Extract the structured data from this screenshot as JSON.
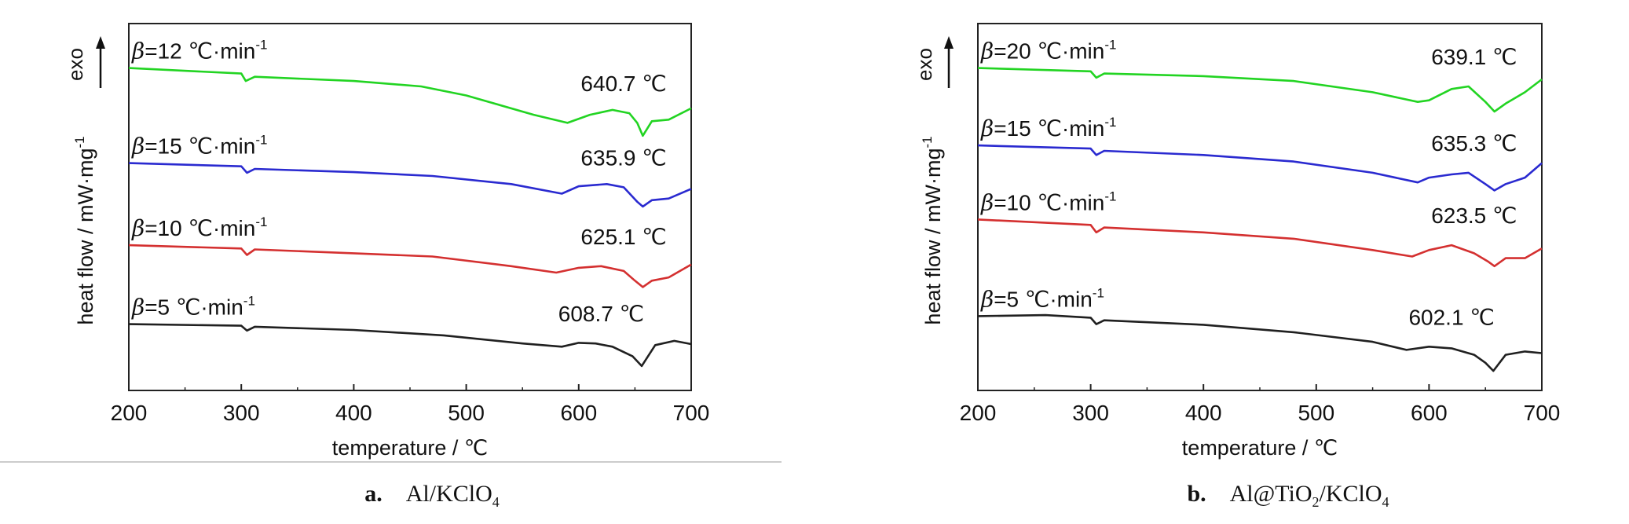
{
  "chart_data": [
    {
      "type": "line",
      "panel_label": "a.",
      "material": "Al/KClO",
      "material_sub": "4",
      "xlabel": "temperature / ℃",
      "ylabel": "heat flow / mW·mg",
      "ylabel_sup": "-1",
      "exo_label": "exo",
      "xlim": [
        200,
        700
      ],
      "xticks": [
        "200",
        "300",
        "400",
        "500",
        "600",
        "700"
      ],
      "y_ticks_shown": false,
      "colors": {
        "green": "#22d422",
        "blue": "#2a2ad0",
        "red": "#d43030",
        "black": "#202020"
      },
      "series": [
        {
          "color": "green",
          "rate_label": "=12 ℃·min",
          "rate_label_sup": "-1",
          "peak_label": "640.7 ℃",
          "peak_temp": 640.7,
          "points": [
            [
              200,
              0.935
            ],
            [
              300,
              0.918
            ],
            [
              304,
              0.895
            ],
            [
              312,
              0.908
            ],
            [
              400,
              0.895
            ],
            [
              460,
              0.878
            ],
            [
              500,
              0.85
            ],
            [
              560,
              0.79
            ],
            [
              590,
              0.765
            ],
            [
              610,
              0.79
            ],
            [
              630,
              0.805
            ],
            [
              645,
              0.795
            ],
            [
              652,
              0.765
            ],
            [
              657,
              0.725
            ],
            [
              665,
              0.77
            ],
            [
              680,
              0.775
            ],
            [
              700,
              0.81
            ]
          ]
        },
        {
          "color": "blue",
          "rate_label": "=15 ℃·min",
          "rate_label_sup": "-1",
          "peak_label": "635.9 ℃",
          "peak_temp": 635.9,
          "points": [
            [
              200,
              0.64
            ],
            [
              300,
              0.63
            ],
            [
              305,
              0.61
            ],
            [
              312,
              0.622
            ],
            [
              400,
              0.612
            ],
            [
              470,
              0.6
            ],
            [
              540,
              0.575
            ],
            [
              585,
              0.545
            ],
            [
              600,
              0.568
            ],
            [
              625,
              0.575
            ],
            [
              640,
              0.565
            ],
            [
              652,
              0.52
            ],
            [
              657,
              0.505
            ],
            [
              665,
              0.525
            ],
            [
              680,
              0.53
            ],
            [
              700,
              0.56
            ]
          ]
        },
        {
          "color": "red",
          "rate_label": "=10 ℃·min",
          "rate_label_sup": "-1",
          "peak_label": "625.1 ℃",
          "peak_temp": 625.1,
          "points": [
            [
              200,
              0.385
            ],
            [
              300,
              0.375
            ],
            [
              305,
              0.355
            ],
            [
              312,
              0.372
            ],
            [
              400,
              0.36
            ],
            [
              470,
              0.35
            ],
            [
              540,
              0.32
            ],
            [
              580,
              0.3
            ],
            [
              600,
              0.315
            ],
            [
              620,
              0.32
            ],
            [
              640,
              0.305
            ],
            [
              650,
              0.275
            ],
            [
              657,
              0.255
            ],
            [
              665,
              0.275
            ],
            [
              680,
              0.285
            ],
            [
              700,
              0.325
            ]
          ]
        },
        {
          "color": "black",
          "rate_label": "=5 ℃·min",
          "rate_label_sup": "-1",
          "peak_label": "608.7 ℃",
          "peak_temp": 608.7,
          "points": [
            [
              200,
              0.14
            ],
            [
              300,
              0.135
            ],
            [
              305,
              0.12
            ],
            [
              312,
              0.132
            ],
            [
              400,
              0.122
            ],
            [
              480,
              0.105
            ],
            [
              550,
              0.08
            ],
            [
              585,
              0.07
            ],
            [
              600,
              0.082
            ],
            [
              615,
              0.08
            ],
            [
              630,
              0.07
            ],
            [
              648,
              0.04
            ],
            [
              656,
              0.01
            ],
            [
              668,
              0.075
            ],
            [
              685,
              0.088
            ],
            [
              700,
              0.078
            ]
          ]
        }
      ]
    },
    {
      "type": "line",
      "panel_label": "b.",
      "material": "Al@TiO",
      "material_sub": "2",
      "material_tail": "/KClO",
      "material_tail_sub": "4",
      "xlabel": "temperature / ℃",
      "ylabel": "heat flow / mW·mg",
      "ylabel_sup": "-1",
      "exo_label": "exo",
      "xlim": [
        200,
        700
      ],
      "xticks": [
        "200",
        "300",
        "400",
        "500",
        "600",
        "700"
      ],
      "y_ticks_shown": false,
      "colors": {
        "green": "#22d422",
        "blue": "#2a2ad0",
        "red": "#d43030",
        "black": "#202020"
      },
      "series": [
        {
          "color": "green",
          "rate_label": "=20 ℃·min",
          "rate_label_sup": "-1",
          "peak_label": "639.1 ℃",
          "peak_temp": 639.1,
          "points": [
            [
              200,
              0.935
            ],
            [
              300,
              0.925
            ],
            [
              305,
              0.905
            ],
            [
              312,
              0.918
            ],
            [
              400,
              0.91
            ],
            [
              480,
              0.895
            ],
            [
              550,
              0.86
            ],
            [
              590,
              0.83
            ],
            [
              600,
              0.835
            ],
            [
              620,
              0.87
            ],
            [
              635,
              0.878
            ],
            [
              650,
              0.83
            ],
            [
              658,
              0.8
            ],
            [
              668,
              0.825
            ],
            [
              685,
              0.86
            ],
            [
              700,
              0.9
            ]
          ]
        },
        {
          "color": "blue",
          "rate_label": "=15 ℃·min",
          "rate_label_sup": "-1",
          "peak_label": "635.3 ℃",
          "peak_temp": 635.3,
          "points": [
            [
              200,
              0.695
            ],
            [
              300,
              0.685
            ],
            [
              305,
              0.665
            ],
            [
              312,
              0.678
            ],
            [
              400,
              0.665
            ],
            [
              480,
              0.645
            ],
            [
              550,
              0.61
            ],
            [
              590,
              0.58
            ],
            [
              600,
              0.595
            ],
            [
              620,
              0.605
            ],
            [
              635,
              0.61
            ],
            [
              650,
              0.575
            ],
            [
              658,
              0.555
            ],
            [
              668,
              0.575
            ],
            [
              685,
              0.595
            ],
            [
              700,
              0.64
            ]
          ]
        },
        {
          "color": "red",
          "rate_label": "=10 ℃·min",
          "rate_label_sup": "-1",
          "peak_label": "623.5 ℃",
          "peak_temp": 623.5,
          "points": [
            [
              200,
              0.465
            ],
            [
              300,
              0.448
            ],
            [
              305,
              0.425
            ],
            [
              312,
              0.44
            ],
            [
              400,
              0.425
            ],
            [
              480,
              0.405
            ],
            [
              550,
              0.37
            ],
            [
              585,
              0.35
            ],
            [
              600,
              0.37
            ],
            [
              620,
              0.385
            ],
            [
              640,
              0.36
            ],
            [
              652,
              0.335
            ],
            [
              658,
              0.32
            ],
            [
              668,
              0.345
            ],
            [
              685,
              0.345
            ],
            [
              700,
              0.375
            ]
          ]
        },
        {
          "color": "black",
          "rate_label": "=5 ℃·min",
          "rate_label_sup": "-1",
          "peak_label": "602.1 ℃",
          "peak_temp": 602.1,
          "points": [
            [
              200,
              0.165
            ],
            [
              260,
              0.168
            ],
            [
              300,
              0.16
            ],
            [
              305,
              0.14
            ],
            [
              312,
              0.152
            ],
            [
              400,
              0.138
            ],
            [
              480,
              0.115
            ],
            [
              550,
              0.085
            ],
            [
              580,
              0.06
            ],
            [
              600,
              0.07
            ],
            [
              620,
              0.065
            ],
            [
              640,
              0.045
            ],
            [
              650,
              0.02
            ],
            [
              657,
              -0.005
            ],
            [
              668,
              0.045
            ],
            [
              685,
              0.055
            ],
            [
              700,
              0.05
            ]
          ]
        }
      ]
    }
  ]
}
